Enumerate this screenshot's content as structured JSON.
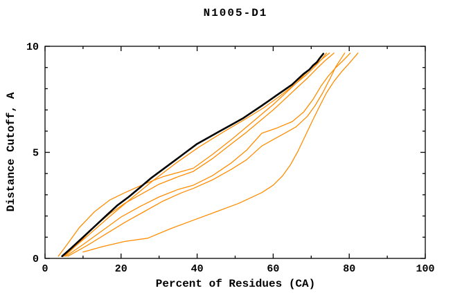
{
  "title": "N1005-D1",
  "colors": {
    "background": "#ffffff",
    "axis": "#000000",
    "reference_curve": "#000000",
    "model_curve": "#ff8c00"
  },
  "chart_data": {
    "type": "line",
    "title": "N1005-D1",
    "xlabel": "Percent of Residues (CA)",
    "ylabel": "Distance Cutoff, A",
    "xlim": [
      0,
      100
    ],
    "ylim": [
      0,
      10
    ],
    "x_major_ticks": [
      0,
      20,
      40,
      60,
      80,
      100
    ],
    "x_minor_step": 10,
    "y_major_ticks": [
      0,
      5,
      10
    ],
    "y_minor_step": 1,
    "grid": false,
    "legend_position": "none",
    "tick_style": "inward-all-four-sides",
    "series": [
      {
        "name": "black-curve",
        "color": "#000000",
        "width": 2.6,
        "points": [
          [
            4.5,
            0.1
          ],
          [
            7,
            0.5
          ],
          [
            10,
            1.0
          ],
          [
            13,
            1.5
          ],
          [
            16,
            2.0
          ],
          [
            19,
            2.5
          ],
          [
            22,
            2.9
          ],
          [
            25,
            3.35
          ],
          [
            28,
            3.8
          ],
          [
            31,
            4.2
          ],
          [
            34,
            4.6
          ],
          [
            37,
            5.0
          ],
          [
            40,
            5.4
          ],
          [
            43,
            5.7
          ],
          [
            46,
            6.0
          ],
          [
            49,
            6.3
          ],
          [
            52,
            6.6
          ],
          [
            54.5,
            6.9
          ],
          [
            57,
            7.2
          ],
          [
            59,
            7.45
          ],
          [
            61,
            7.7
          ],
          [
            63,
            7.95
          ],
          [
            65,
            8.2
          ],
          [
            66.5,
            8.45
          ],
          [
            68,
            8.7
          ],
          [
            69.5,
            8.9
          ],
          [
            70.5,
            9.1
          ],
          [
            71.5,
            9.25
          ],
          [
            72.3,
            9.45
          ],
          [
            73.2,
            9.65
          ]
        ]
      },
      {
        "name": "orange-curve-1",
        "color": "#ff8c00",
        "width": 1.3,
        "points": [
          [
            4.8,
            0.1
          ],
          [
            10.5,
            0.95
          ],
          [
            16.5,
            1.9
          ],
          [
            22.5,
            2.8
          ],
          [
            28.5,
            3.68
          ],
          [
            34.5,
            4.5
          ],
          [
            40.5,
            5.25
          ],
          [
            46.5,
            5.92
          ],
          [
            52.5,
            6.55
          ],
          [
            57.5,
            7.1
          ],
          [
            61.5,
            7.62
          ],
          [
            65.5,
            8.18
          ],
          [
            68.5,
            8.62
          ],
          [
            71,
            9.05
          ],
          [
            72.8,
            9.4
          ],
          [
            74,
            9.68
          ]
        ]
      },
      {
        "name": "orange-curve-2",
        "color": "#ff8c00",
        "width": 1.3,
        "points": [
          [
            3.5,
            0.1
          ],
          [
            6,
            0.7
          ],
          [
            9,
            1.45
          ],
          [
            13,
            2.2
          ],
          [
            17,
            2.75
          ],
          [
            21,
            3.1
          ],
          [
            26,
            3.5
          ],
          [
            31,
            3.85
          ],
          [
            36,
            4.1
          ],
          [
            39,
            4.25
          ],
          [
            44,
            4.9
          ],
          [
            49,
            5.6
          ],
          [
            53,
            6.2
          ],
          [
            57,
            6.8
          ],
          [
            60,
            7.25
          ],
          [
            63,
            7.75
          ],
          [
            66,
            8.25
          ],
          [
            69,
            8.8
          ],
          [
            71.5,
            9.2
          ],
          [
            73.2,
            9.45
          ],
          [
            74.8,
            9.68
          ]
        ]
      },
      {
        "name": "orange-curve-3",
        "color": "#ff8c00",
        "width": 1.3,
        "points": [
          [
            5.2,
            0.1
          ],
          [
            9,
            0.75
          ],
          [
            13,
            1.5
          ],
          [
            17,
            2.1
          ],
          [
            21,
            2.6
          ],
          [
            25,
            3.0
          ],
          [
            30,
            3.5
          ],
          [
            35,
            3.85
          ],
          [
            39,
            4.1
          ],
          [
            44,
            4.7
          ],
          [
            49,
            5.4
          ],
          [
            53,
            5.95
          ],
          [
            57,
            6.55
          ],
          [
            60,
            7.0
          ],
          [
            63,
            7.5
          ],
          [
            66,
            8.0
          ],
          [
            69,
            8.5
          ],
          [
            71.5,
            8.95
          ],
          [
            73.5,
            9.3
          ],
          [
            76,
            9.68
          ]
        ]
      },
      {
        "name": "orange-curve-4",
        "color": "#ff8c00",
        "width": 1.3,
        "points": [
          [
            5.5,
            0.1
          ],
          [
            10,
            0.65
          ],
          [
            15,
            1.3
          ],
          [
            20,
            1.95
          ],
          [
            25,
            2.45
          ],
          [
            30,
            2.9
          ],
          [
            35,
            3.25
          ],
          [
            39,
            3.45
          ],
          [
            44,
            3.9
          ],
          [
            49,
            4.5
          ],
          [
            53,
            5.1
          ],
          [
            57,
            5.9
          ],
          [
            61,
            6.15
          ],
          [
            65,
            6.45
          ],
          [
            68,
            6.9
          ],
          [
            70.5,
            7.5
          ],
          [
            72.5,
            8.1
          ],
          [
            74.5,
            8.6
          ],
          [
            76.5,
            9.0
          ],
          [
            78.5,
            9.35
          ],
          [
            80.3,
            9.68
          ]
        ]
      },
      {
        "name": "orange-curve-5",
        "color": "#ff8c00",
        "width": 1.3,
        "points": [
          [
            6,
            0.1
          ],
          [
            11,
            0.6
          ],
          [
            16,
            1.15
          ],
          [
            21,
            1.7
          ],
          [
            26,
            2.2
          ],
          [
            31,
            2.7
          ],
          [
            36,
            3.1
          ],
          [
            39,
            3.3
          ],
          [
            44,
            3.7
          ],
          [
            49,
            4.2
          ],
          [
            53,
            4.65
          ],
          [
            57,
            5.3
          ],
          [
            60,
            5.6
          ],
          [
            63,
            5.9
          ],
          [
            66,
            6.2
          ],
          [
            69,
            6.7
          ],
          [
            71,
            7.2
          ],
          [
            73,
            7.8
          ],
          [
            75,
            8.5
          ],
          [
            76.5,
            9.05
          ],
          [
            78.8,
            9.68
          ]
        ]
      },
      {
        "name": "orange-curve-6",
        "color": "#ff8c00",
        "width": 1.3,
        "points": [
          [
            10,
            0.3
          ],
          [
            15,
            0.55
          ],
          [
            21,
            0.8
          ],
          [
            27,
            0.95
          ],
          [
            33,
            1.4
          ],
          [
            39,
            1.8
          ],
          [
            45,
            2.2
          ],
          [
            51,
            2.6
          ],
          [
            57,
            3.1
          ],
          [
            60,
            3.45
          ],
          [
            62.5,
            3.9
          ],
          [
            64.5,
            4.4
          ],
          [
            66.5,
            5.05
          ],
          [
            68.5,
            5.8
          ],
          [
            70.5,
            6.55
          ],
          [
            72,
            7.1
          ],
          [
            74,
            7.8
          ],
          [
            76,
            8.35
          ],
          [
            78,
            8.8
          ],
          [
            80,
            9.2
          ],
          [
            82.3,
            9.68
          ]
        ]
      }
    ]
  }
}
